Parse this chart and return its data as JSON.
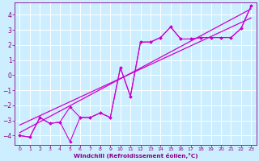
{
  "xlabel": "Windchill (Refroidissement éolien,°C)",
  "bg_color": "#cceeff",
  "grid_color": "#ffffff",
  "line_color": "#cc00cc",
  "xlim": [
    -0.5,
    23.5
  ],
  "ylim": [
    -4.6,
    4.8
  ],
  "xticks": [
    0,
    1,
    2,
    3,
    4,
    5,
    6,
    7,
    8,
    9,
    10,
    11,
    12,
    13,
    14,
    15,
    16,
    17,
    18,
    19,
    20,
    21,
    22,
    23
  ],
  "yticks": [
    -4,
    -3,
    -2,
    -1,
    0,
    1,
    2,
    3,
    4
  ],
  "series1_x": [
    0,
    1,
    2,
    3,
    4,
    5,
    6,
    7,
    8,
    9,
    10,
    11,
    12,
    13,
    14,
    15,
    16,
    17,
    18,
    19,
    20,
    21,
    22,
    23
  ],
  "series1_y": [
    -4.0,
    -4.1,
    -2.8,
    -3.2,
    -3.1,
    -2.1,
    -2.8,
    -2.8,
    -2.5,
    -2.8,
    0.5,
    -1.4,
    2.2,
    2.2,
    2.5,
    3.2,
    2.4,
    2.4,
    2.5,
    2.5,
    2.5,
    2.5,
    3.1,
    4.6
  ],
  "series2_x": [
    0,
    1,
    2,
    3,
    4,
    5,
    6,
    7,
    8,
    9,
    10,
    11,
    12,
    13,
    14,
    15,
    16,
    17,
    18,
    19,
    20,
    21,
    22,
    23
  ],
  "series2_y": [
    -4.0,
    -4.1,
    -2.8,
    -3.2,
    -3.1,
    -4.4,
    -2.8,
    -2.8,
    -2.5,
    -2.8,
    0.5,
    -1.4,
    2.2,
    2.2,
    2.5,
    3.2,
    2.4,
    2.4,
    2.5,
    2.5,
    2.5,
    2.5,
    3.1,
    4.6
  ],
  "trend1_x": [
    0,
    23
  ],
  "trend1_y": [
    -3.8,
    4.4
  ],
  "trend2_x": [
    0,
    23
  ],
  "trend2_y": [
    -3.3,
    3.8
  ]
}
